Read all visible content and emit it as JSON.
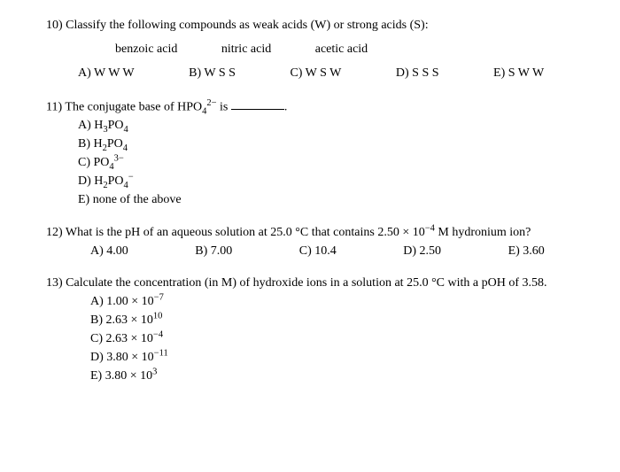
{
  "q10": {
    "prompt": "10) Classify the following compounds as weak acids (W) or strong acids (S):",
    "compounds": {
      "c1": "benzoic acid",
      "c2": "nitric acid",
      "c3": "acetic acid"
    },
    "options": {
      "a": "A) W W W",
      "b": "B) W S S",
      "c": "C) W S W",
      "d": "D) S S S",
      "e": "E) S W W"
    }
  },
  "q11": {
    "prompt_pre": "11) The conjugate base of HPO",
    "prompt_sub": "4",
    "prompt_sup": "2−",
    "prompt_post": " is ",
    "prompt_end": ".",
    "options": {
      "a_pre": "A) H",
      "a_sub1": "3",
      "a_mid": "PO",
      "a_sub2": "4",
      "b_pre": "B) H",
      "b_sub1": "2",
      "b_mid": "PO",
      "b_sub2": "4",
      "c_pre": "C) PO",
      "c_sub": "4",
      "c_sup": "3−",
      "d_pre": "D) H",
      "d_sub1": "2",
      "d_mid": "PO",
      "d_sub2": "4",
      "d_sup": "−",
      "e": "E) none of the above"
    }
  },
  "q12": {
    "prompt_pre": "12) What is the pH of an aqueous solution at 25.0 °C that contains 2.50 × 10",
    "prompt_sup": "−4",
    "prompt_post": " M hydronium ion?",
    "options": {
      "a": "A) 4.00",
      "b": "B) 7.00",
      "c": "C) 10.4",
      "d": "D) 2.50",
      "e": "E) 3.60"
    }
  },
  "q13": {
    "prompt": "13) Calculate the concentration (in M) of hydroxide ions in a solution at 25.0 °C with a pOH of 3.58.",
    "options": {
      "a_pre": "A) 1.00 × 10",
      "a_sup": "−7",
      "b_pre": "B) 2.63 × 10",
      "b_sup": "10",
      "c_pre": "C) 2.63 × 10",
      "c_sup": "−4",
      "d_pre": "D) 3.80 × 10",
      "d_sup": "−11",
      "e_pre": "E) 3.80 × 10",
      "e_sup": "3"
    }
  }
}
